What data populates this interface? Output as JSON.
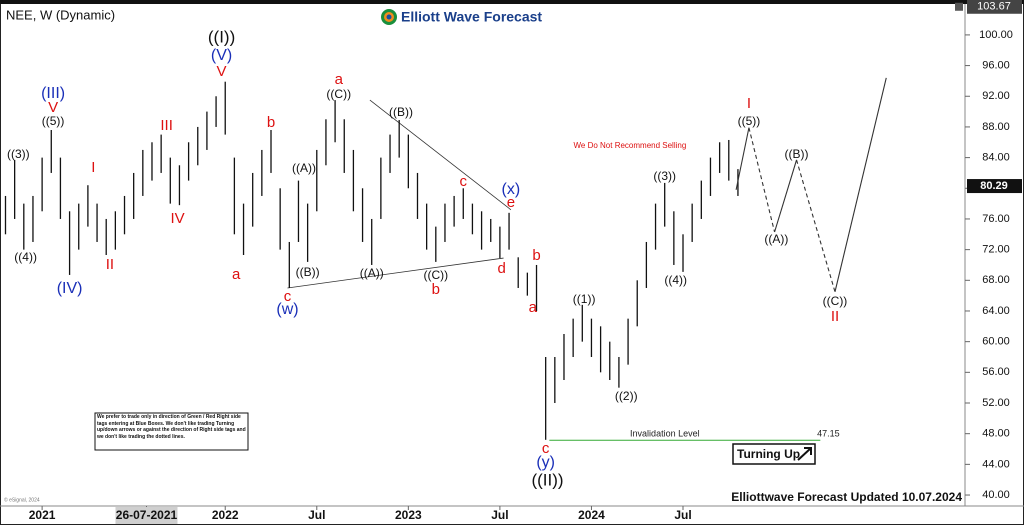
{
  "chart_data": {
    "type": "hilo",
    "title": "NEE, W (Dynamic)",
    "logo": "Elliott Wave Forecast",
    "footer": "Elliottwave Forecast Updated 10.07.2024",
    "copyright": "© eSignal, 2024",
    "disclaimer": "We prefer to trade only in direction of Green / Red Right side tags entering at Blue Boxes. We don't like trading Turning up/down arrows or against the direction of Right side tags and we don't like trading the dotted lines.",
    "badge": "Turning Up",
    "color": "#111111",
    "x": [
      2020.8,
      2020.85,
      2020.9,
      2020.95,
      2021.0,
      2021.05,
      2021.1,
      2021.15,
      2021.2,
      2021.25,
      2021.3,
      2021.35,
      2021.4,
      2021.45,
      2021.5,
      2021.55,
      2021.6,
      2021.65,
      2021.7,
      2021.75,
      2021.8,
      2021.85,
      2021.9,
      2021.95,
      2022.0,
      2022.05,
      2022.1,
      2022.15,
      2022.2,
      2022.25,
      2022.3,
      2022.35,
      2022.4,
      2022.45,
      2022.5,
      2022.55,
      2022.6,
      2022.65,
      2022.7,
      2022.75,
      2022.8,
      2022.85,
      2022.9,
      2022.95,
      2023.0,
      2023.05,
      2023.1,
      2023.15,
      2023.2,
      2023.25,
      2023.3,
      2023.35,
      2023.4,
      2023.45,
      2023.5,
      2023.55,
      2023.6,
      2023.65,
      2023.7,
      2023.75,
      2023.8,
      2023.85,
      2023.9,
      2023.95,
      2024.0,
      2024.05,
      2024.1,
      2024.15,
      2024.2,
      2024.25,
      2024.3,
      2024.35,
      2024.4,
      2024.45,
      2024.5,
      2024.55,
      2024.6,
      2024.65,
      2024.7,
      2024.75,
      2024.8
    ],
    "high": [
      79,
      83.7,
      78,
      79,
      84,
      87.6,
      84,
      77,
      78,
      80.4,
      78,
      76,
      77,
      79,
      82,
      85,
      86,
      87,
      84,
      83,
      86,
      88,
      90,
      92,
      93.9,
      84,
      78,
      82,
      85,
      87.6,
      80,
      73,
      81,
      78,
      85,
      89,
      91.5,
      89,
      85,
      80,
      76,
      84,
      87,
      88.9,
      87,
      82,
      78,
      75,
      78,
      79,
      80,
      78,
      77,
      76,
      75,
      76.8,
      71,
      69,
      70,
      58,
      58,
      61,
      63,
      64.8,
      63,
      62,
      60,
      58,
      63,
      68,
      73,
      78,
      80.7,
      77,
      74,
      78,
      81,
      84,
      86,
      86.3,
      82.5
    ],
    "low": [
      74,
      76,
      72,
      73,
      77,
      82,
      76,
      68.7,
      72,
      75,
      73,
      71.3,
      72,
      74,
      76,
      79,
      81,
      82,
      78,
      77.8,
      81,
      83,
      85,
      88,
      87,
      74,
      71.3,
      75,
      79,
      82,
      72,
      67,
      73,
      70.4,
      77,
      83,
      86,
      82,
      77,
      73,
      70,
      76,
      82,
      84,
      80,
      76,
      72,
      70.4,
      73,
      75,
      76,
      74,
      72,
      73,
      70.9,
      72,
      67,
      66,
      64,
      47.2,
      52,
      55,
      58,
      60,
      58,
      56,
      55,
      54,
      57,
      62,
      67,
      72,
      75,
      70,
      69.1,
      73,
      76,
      79,
      82,
      81,
      79
    ],
    "projection": {
      "x": [
        2024.79,
        2024.86,
        2025.0,
        2025.12,
        2025.33,
        2025.61
      ],
      "values": [
        79.8,
        87.9,
        74.3,
        83.7,
        66.5,
        94.4
      ],
      "styles": [
        "solid",
        "dashed",
        "solid",
        "dashed",
        "solid"
      ],
      "color": "#333333"
    },
    "trendlines": [
      {
        "x": [
          2022.34,
          2023.52
        ],
        "values": [
          67.0,
          70.9
        ]
      },
      {
        "x": [
          2022.79,
          2023.56
        ],
        "values": [
          91.5,
          77.2
        ]
      }
    ],
    "invalidation": {
      "label": "Invalidation Level",
      "value": 47.15,
      "x": [
        2023.77,
        2025.25
      ],
      "color": "#33aa33"
    },
    "last_price": 80.29,
    "high_tag": 103.67,
    "annotations": [
      {
        "text": "((3))",
        "x": 2020.87,
        "y": 84.35,
        "color": "#111111"
      },
      {
        "text": "((4))",
        "x": 2020.91,
        "y": 70.9,
        "color": "#111111"
      },
      {
        "text": "((5))",
        "x": 2021.06,
        "y": 88.65,
        "color": "#111111"
      },
      {
        "text": "V",
        "x": 2021.06,
        "y": 90.48,
        "color": "#dd1111"
      },
      {
        "text": "(III)",
        "x": 2021.06,
        "y": 92.3,
        "color": "#1a2fb8"
      },
      {
        "text": "(IV)",
        "x": 2021.15,
        "y": 66.87,
        "color": "#1a2fb8"
      },
      {
        "text": "I",
        "x": 2021.28,
        "y": 82.65,
        "color": "#dd1111"
      },
      {
        "text": "II",
        "x": 2021.37,
        "y": 70.0,
        "color": "#dd1111"
      },
      {
        "text": "III",
        "x": 2021.68,
        "y": 88.1,
        "color": "#dd1111"
      },
      {
        "text": "IV",
        "x": 2021.74,
        "y": 76.0,
        "color": "#dd1111"
      },
      {
        "text": "((I))",
        "x": 2021.98,
        "y": 99.6,
        "color": "#111111",
        "emphasis": true
      },
      {
        "text": "(V)",
        "x": 2021.98,
        "y": 97.26,
        "color": "#1a2fb8"
      },
      {
        "text": "V",
        "x": 2021.98,
        "y": 95.17,
        "color": "#dd1111"
      },
      {
        "text": "a",
        "x": 2022.06,
        "y": 68.7,
        "color": "#dd1111"
      },
      {
        "text": "b",
        "x": 2022.25,
        "y": 88.5,
        "color": "#dd1111"
      },
      {
        "text": "c",
        "x": 2022.34,
        "y": 65.83,
        "color": "#dd1111"
      },
      {
        "text": "(w)",
        "x": 2022.34,
        "y": 64.13,
        "color": "#1a2fb8"
      },
      {
        "text": "((A))",
        "x": 2022.43,
        "y": 82.52,
        "color": "#111111"
      },
      {
        "text": "((B))",
        "x": 2022.45,
        "y": 68.96,
        "color": "#111111"
      },
      {
        "text": "a",
        "x": 2022.62,
        "y": 94.13,
        "color": "#dd1111"
      },
      {
        "text": "((C))",
        "x": 2022.62,
        "y": 92.17,
        "color": "#111111"
      },
      {
        "text": "((A))",
        "x": 2022.8,
        "y": 68.83,
        "color": "#111111"
      },
      {
        "text": "((B))",
        "x": 2022.96,
        "y": 89.83,
        "color": "#111111"
      },
      {
        "text": "((C))",
        "x": 2023.15,
        "y": 68.57,
        "color": "#111111"
      },
      {
        "text": "b",
        "x": 2023.15,
        "y": 66.74,
        "color": "#dd1111"
      },
      {
        "text": "c",
        "x": 2023.3,
        "y": 80.83,
        "color": "#dd1111"
      },
      {
        "text": "d",
        "x": 2023.51,
        "y": 69.48,
        "color": "#dd1111"
      },
      {
        "text": "(x)",
        "x": 2023.56,
        "y": 79.78,
        "color": "#1a2fb8"
      },
      {
        "text": "e",
        "x": 2023.56,
        "y": 78.09,
        "color": "#dd1111"
      },
      {
        "text": "b",
        "x": 2023.7,
        "y": 71.17,
        "color": "#dd1111"
      },
      {
        "text": "a",
        "x": 2023.68,
        "y": 64.39,
        "color": "#dd1111"
      },
      {
        "text": "c",
        "x": 2023.75,
        "y": 46.0,
        "color": "#dd1111"
      },
      {
        "text": "(y)",
        "x": 2023.75,
        "y": 44.18,
        "color": "#1a2fb8"
      },
      {
        "text": "((II))",
        "x": 2023.76,
        "y": 41.83,
        "color": "#111111",
        "emphasis": true
      },
      {
        "text": "((1))",
        "x": 2023.96,
        "y": 65.44,
        "color": "#111111"
      },
      {
        "text": "((2))",
        "x": 2024.19,
        "y": 52.8,
        "color": "#111111"
      },
      {
        "text": "((3))",
        "x": 2024.4,
        "y": 81.48,
        "color": "#111111"
      },
      {
        "text": "((4))",
        "x": 2024.46,
        "y": 67.91,
        "color": "#111111"
      },
      {
        "text": "I",
        "x": 2024.86,
        "y": 91.0,
        "color": "#dd1111"
      },
      {
        "text": "((5))",
        "x": 2024.86,
        "y": 88.65,
        "color": "#111111"
      },
      {
        "text": "((A))",
        "x": 2025.01,
        "y": 73.26,
        "color": "#111111"
      },
      {
        "text": "((B))",
        "x": 2025.12,
        "y": 84.35,
        "color": "#111111"
      },
      {
        "text": "((C))",
        "x": 2025.33,
        "y": 65.17,
        "color": "#111111"
      },
      {
        "text": "II",
        "x": 2025.33,
        "y": 63.22,
        "color": "#dd1111"
      },
      {
        "text": "We Do Not Recommend Selling",
        "x": 2024.21,
        "y": 85.52,
        "color": "#dd1111",
        "note": true
      }
    ],
    "xlim": [
      2020.77,
      2026.04
    ],
    "xticks": [
      2021,
      {
        "value": 2021.57,
        "label": "26-07-2021"
      },
      2022,
      {
        "value": 2022.5,
        "label": "Jul"
      },
      2023,
      {
        "value": 2023.5,
        "label": "Jul"
      },
      2024,
      {
        "value": 2024.5,
        "label": "Jul"
      }
    ],
    "highlight_xtick": 1,
    "ylim": [
      38.7,
      103.9
    ],
    "yticks": [
      {
        "value": 40,
        "label": "40.00"
      },
      {
        "value": 44,
        "label": "44.00"
      },
      {
        "value": 48,
        "label": "48.00"
      },
      {
        "value": 52,
        "label": "52.00"
      },
      {
        "value": 56,
        "label": "56.00"
      },
      {
        "value": 60,
        "label": "60.00"
      },
      {
        "value": 64,
        "label": "64.00"
      },
      {
        "value": 68,
        "label": "68.00"
      },
      {
        "value": 72,
        "label": "72.00"
      },
      {
        "value": 76,
        "label": "76.00"
      },
      {
        "value": 80,
        "label": "80.00"
      },
      {
        "value": 84,
        "label": "84.00"
      },
      {
        "value": 88,
        "label": "88.00"
      },
      {
        "value": 92,
        "label": "92.00"
      },
      {
        "value": 96,
        "label": "96.00"
      },
      {
        "value": 100,
        "label": "100.00"
      }
    ]
  }
}
